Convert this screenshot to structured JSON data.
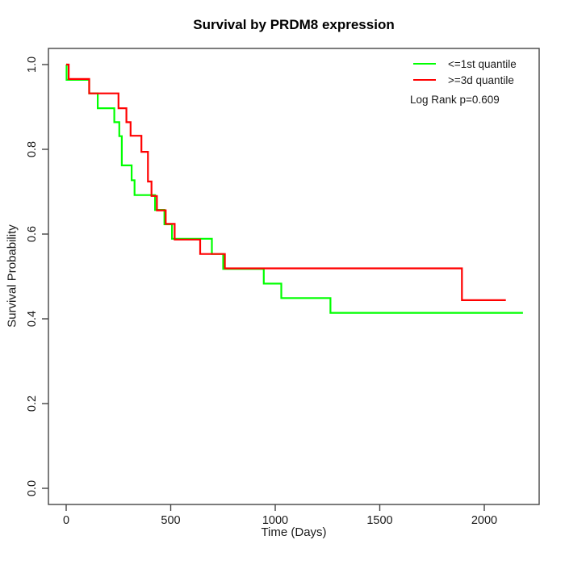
{
  "chart_data": {
    "type": "line",
    "subtype": "kaplan-meier-step-curves",
    "title": "Survival by PRDM8 expression",
    "xlabel": "Time (Days)",
    "ylabel": "Survival Probability",
    "grid": "off",
    "legend_position": "top-right-inside",
    "annotation": "Log Rank p=0.609",
    "x_axis": {
      "range_days": [
        0,
        2200
      ],
      "ticks": [
        {
          "value": 0,
          "label": "0"
        },
        {
          "value": 500,
          "label": "500"
        },
        {
          "value": 1000,
          "label": "1000"
        },
        {
          "value": 1500,
          "label": "1500"
        },
        {
          "value": 2000,
          "label": "2000"
        }
      ]
    },
    "y_axis": {
      "range": [
        0.0,
        1.0
      ],
      "ticks": [
        {
          "value": 0.0,
          "label": "0.0"
        },
        {
          "value": 0.2,
          "label": "0.2"
        },
        {
          "value": 0.4,
          "label": "0.4"
        },
        {
          "value": 0.6,
          "label": "0.6"
        },
        {
          "value": 0.8,
          "label": "0.8"
        },
        {
          "value": 1.0,
          "label": "1.0"
        }
      ]
    },
    "series": [
      {
        "key": "low-expression",
        "name": "<=1st quantile",
        "color": "#00ff00",
        "end_time": 2185,
        "points": [
          [
            0,
            1.0
          ],
          [
            2,
            0.964
          ],
          [
            110,
            0.932
          ],
          [
            151,
            0.897
          ],
          [
            230,
            0.864
          ],
          [
            254,
            0.831
          ],
          [
            266,
            0.762
          ],
          [
            313,
            0.727
          ],
          [
            327,
            0.692
          ],
          [
            425,
            0.657
          ],
          [
            470,
            0.623
          ],
          [
            506,
            0.589
          ],
          [
            697,
            0.553
          ],
          [
            751,
            0.518
          ],
          [
            945,
            0.483
          ],
          [
            1029,
            0.449
          ],
          [
            1264,
            0.414
          ]
        ]
      },
      {
        "key": "high-expression",
        "name": ">=3d quantile",
        "color": "#ff0000",
        "end_time": 2103,
        "points": [
          [
            0,
            1.0
          ],
          [
            12,
            0.966
          ],
          [
            110,
            0.932
          ],
          [
            250,
            0.897
          ],
          [
            288,
            0.864
          ],
          [
            308,
            0.832
          ],
          [
            360,
            0.794
          ],
          [
            391,
            0.724
          ],
          [
            408,
            0.69
          ],
          [
            434,
            0.656
          ],
          [
            476,
            0.624
          ],
          [
            519,
            0.587
          ],
          [
            641,
            0.553
          ],
          [
            759,
            0.519
          ],
          [
            1893,
            0.444
          ]
        ]
      }
    ],
    "style_colors": {
      "axis_and_box": "#454545",
      "text": "#1a1a1a"
    }
  }
}
